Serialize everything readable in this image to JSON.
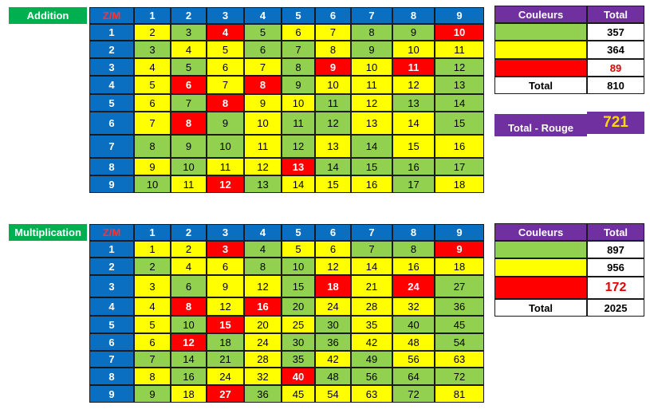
{
  "colors": {
    "green": "#92d050",
    "yellow": "#ffff00",
    "red": "#ff0000",
    "blue": "#0a6fc1",
    "purple": "#7030a0",
    "title_green": "#00b050",
    "gold": "#ffd700"
  },
  "addition": {
    "title": "Addition",
    "corner": "Z/M",
    "headers": [
      "1",
      "2",
      "3",
      "4",
      "5",
      "6",
      "7",
      "8",
      "9"
    ],
    "rows": [
      [
        "2",
        "3",
        "4",
        "5",
        "6",
        "7",
        "8",
        "9",
        "10"
      ],
      [
        "3",
        "4",
        "5",
        "6",
        "7",
        "8",
        "9",
        "10",
        "11"
      ],
      [
        "4",
        "5",
        "6",
        "7",
        "8",
        "9",
        "10",
        "11",
        "12"
      ],
      [
        "5",
        "6",
        "7",
        "8",
        "9",
        "10",
        "11",
        "12",
        "13"
      ],
      [
        "6",
        "7",
        "8",
        "9",
        "10",
        "11",
        "12",
        "13",
        "14"
      ],
      [
        "7",
        "8",
        "9",
        "10",
        "11",
        "12",
        "13",
        "14",
        "15"
      ],
      [
        "8",
        "9",
        "10",
        "11",
        "12",
        "13",
        "14",
        "15",
        "16"
      ],
      [
        "9",
        "10",
        "11",
        "12",
        "13",
        "14",
        "15",
        "16",
        "17"
      ],
      [
        "10",
        "11",
        "12",
        "13",
        "14",
        "15",
        "16",
        "17",
        "18"
      ]
    ],
    "colors": [
      [
        "y",
        "g",
        "r",
        "g",
        "y",
        "y",
        "g",
        "g",
        "r"
      ],
      [
        "g",
        "y",
        "y",
        "g",
        "g",
        "y",
        "g",
        "y",
        "y"
      ],
      [
        "y",
        "g",
        "y",
        "y",
        "g",
        "r",
        "y",
        "r",
        "g"
      ],
      [
        "y",
        "r",
        "y",
        "r",
        "g",
        "y",
        "y",
        "y",
        "g"
      ],
      [
        "y",
        "g",
        "r",
        "y",
        "y",
        "g",
        "y",
        "g",
        "g"
      ],
      [
        "y",
        "r",
        "g",
        "y",
        "g",
        "g",
        "y",
        "y",
        "g"
      ],
      [
        "g",
        "g",
        "g",
        "y",
        "g",
        "y",
        "g",
        "y",
        "y"
      ],
      [
        "y",
        "g",
        "y",
        "y",
        "r",
        "g",
        "g",
        "g",
        "g"
      ],
      [
        "g",
        "y",
        "r",
        "g",
        "y",
        "y",
        "y",
        "g",
        "y"
      ]
    ],
    "summary": {
      "header_couleurs": "Couleurs",
      "header_total": "Total",
      "green": "357",
      "yellow": "364",
      "red": "89",
      "total_label": "Total",
      "total": "810"
    },
    "rouge_label": "Total - Rouge",
    "rouge_value": "721"
  },
  "multiplication": {
    "title": "Multiplication",
    "corner": "Z/M",
    "headers": [
      "1",
      "2",
      "3",
      "4",
      "5",
      "6",
      "7",
      "8",
      "9"
    ],
    "rows": [
      [
        "1",
        "2",
        "3",
        "4",
        "5",
        "6",
        "7",
        "8",
        "9"
      ],
      [
        "2",
        "4",
        "6",
        "8",
        "10",
        "12",
        "14",
        "16",
        "18"
      ],
      [
        "3",
        "6",
        "9",
        "12",
        "15",
        "18",
        "21",
        "24",
        "27"
      ],
      [
        "4",
        "8",
        "12",
        "16",
        "20",
        "24",
        "28",
        "32",
        "36"
      ],
      [
        "5",
        "10",
        "15",
        "20",
        "25",
        "30",
        "35",
        "40",
        "45"
      ],
      [
        "6",
        "12",
        "18",
        "24",
        "30",
        "36",
        "42",
        "48",
        "54"
      ],
      [
        "7",
        "14",
        "21",
        "28",
        "35",
        "42",
        "49",
        "56",
        "63"
      ],
      [
        "8",
        "16",
        "24",
        "32",
        "40",
        "48",
        "56",
        "64",
        "72"
      ],
      [
        "9",
        "18",
        "27",
        "36",
        "45",
        "54",
        "63",
        "72",
        "81"
      ]
    ],
    "colors": [
      [
        "y",
        "y",
        "r",
        "g",
        "y",
        "y",
        "g",
        "g",
        "r"
      ],
      [
        "g",
        "y",
        "y",
        "g",
        "g",
        "y",
        "y",
        "y",
        "y"
      ],
      [
        "y",
        "g",
        "y",
        "y",
        "g",
        "r",
        "y",
        "r",
        "g"
      ],
      [
        "y",
        "r",
        "y",
        "r",
        "g",
        "y",
        "y",
        "y",
        "g"
      ],
      [
        "y",
        "g",
        "r",
        "y",
        "y",
        "g",
        "y",
        "g",
        "g"
      ],
      [
        "y",
        "r",
        "g",
        "y",
        "g",
        "g",
        "y",
        "y",
        "g"
      ],
      [
        "g",
        "g",
        "g",
        "y",
        "g",
        "y",
        "g",
        "y",
        "y"
      ],
      [
        "y",
        "g",
        "y",
        "y",
        "r",
        "g",
        "g",
        "g",
        "g"
      ],
      [
        "g",
        "y",
        "r",
        "g",
        "y",
        "y",
        "y",
        "g",
        "y"
      ]
    ],
    "summary": {
      "header_couleurs": "Couleurs",
      "header_total": "Total",
      "green": "897",
      "yellow": "956",
      "red": "172",
      "total_label": "Total",
      "total": "2025"
    }
  }
}
